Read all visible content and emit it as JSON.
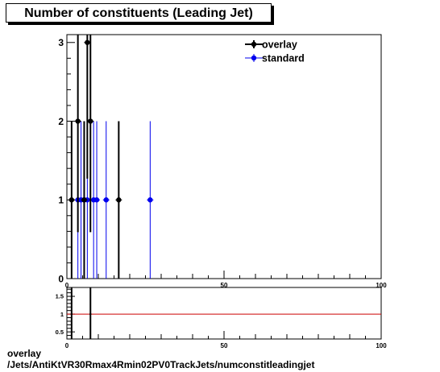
{
  "title": "Number of constituents (Leading Jet)",
  "footer": {
    "line1": "overlay",
    "line2": "/Jets/AntiKtVR30Rmax4Rmin02PV0TrackJets/numconstitleadingjet"
  },
  "colors": {
    "overlay": "#000000",
    "standard": "#0000ee",
    "ratio_line": "#cc0000"
  },
  "chart_data": [
    {
      "type": "scatter",
      "title": "Number of constituents (Leading Jet)",
      "xlim": [
        0,
        100
      ],
      "ylim": [
        0,
        3.1
      ],
      "x_ticks": [
        0,
        50,
        100
      ],
      "y_ticks": [
        0,
        1,
        2,
        3
      ],
      "legend_position": "top-right",
      "series": [
        {
          "name": "overlay",
          "x": [
            1.5,
            3.5,
            5.5,
            6.5,
            7.5,
            16.5
          ],
          "y": [
            1,
            2,
            1,
            3,
            2,
            1
          ],
          "err": [
            1,
            1.41,
            1,
            1.73,
            1.41,
            1
          ]
        },
        {
          "name": "standard",
          "x": [
            3.5,
            4.5,
            5.5,
            6.5,
            8.5,
            9.5,
            12.5,
            26.5
          ],
          "y": [
            1,
            1,
            1,
            1,
            1,
            1,
            1,
            1
          ],
          "err": [
            1,
            1,
            1,
            1,
            1,
            1,
            1,
            1
          ]
        }
      ]
    },
    {
      "type": "line",
      "title": "",
      "xlim": [
        0,
        100
      ],
      "ylim": [
        0.3,
        1.75
      ],
      "x_ticks": [
        0,
        50,
        100
      ],
      "y_ticks": [
        0.5,
        1,
        1.5
      ],
      "reference_line": 1,
      "series": [
        {
          "x": [
            1.5,
            7.5
          ],
          "y": [
            1,
            1
          ]
        }
      ]
    }
  ]
}
